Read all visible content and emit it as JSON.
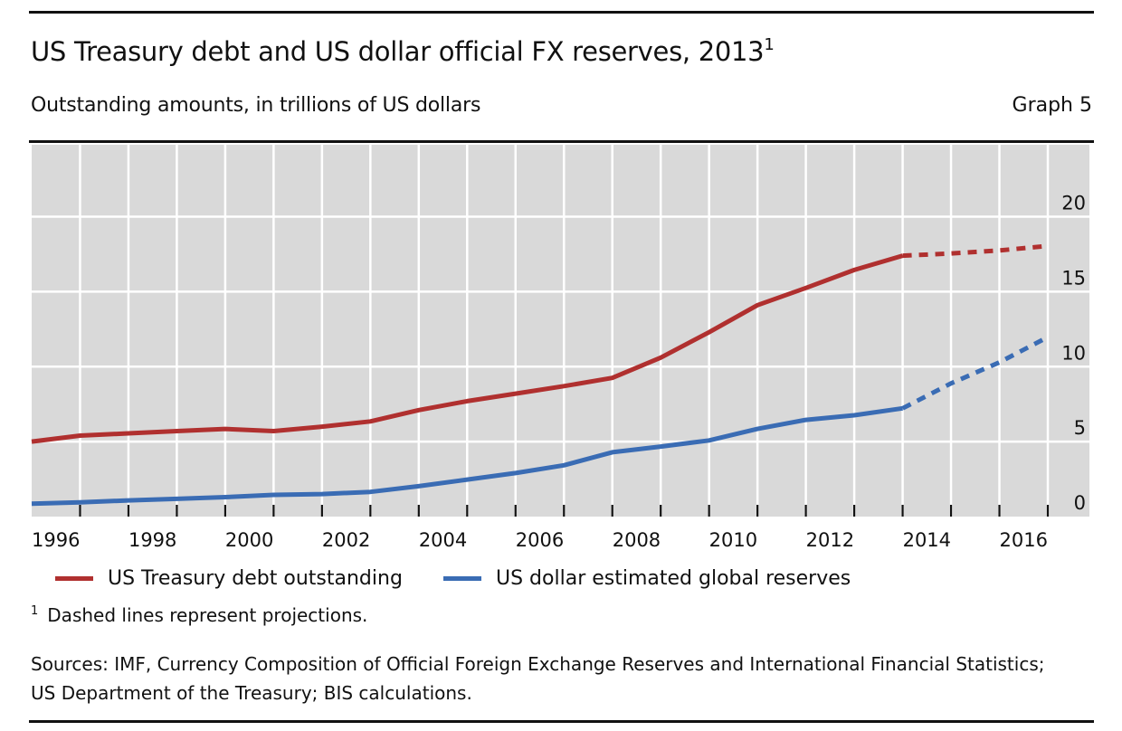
{
  "header": {
    "title": "US Treasury debt and US dollar official FX reserves, 2013",
    "title_footnote_marker": "1",
    "subtitle": "Outstanding amounts, in trillions  of US dollars",
    "graph_number": "Graph 5"
  },
  "footer": {
    "footnote_marker": "1",
    "footnote_text": "Dashed lines represent projections.",
    "sources_line1": "Sources: IMF, Currency Composition of Official Foreign Exchange Reserves and International Financial Statistics;",
    "sources_line2": "US Department of the Treasury; BIS calculations."
  },
  "chart_data": {
    "type": "line",
    "title": "US Treasury debt and US dollar official FX reserves, 2013",
    "subtitle": "Outstanding amounts, in trillions  of US dollars",
    "xlabel": "",
    "ylabel": "",
    "x_unit": "year (points at year boundaries; labels centred on each year)",
    "xlim": [
      1996,
      2017
    ],
    "ylim": [
      0,
      24.8
    ],
    "y_axis_position": "right",
    "y_ticks": [
      0,
      5,
      10,
      15,
      20
    ],
    "y_tick_labels": [
      "0",
      "5",
      "10",
      "15",
      "20"
    ],
    "x_tick_labels": [
      "1996",
      "1998",
      "2000",
      "2002",
      "2004",
      "2006",
      "2008",
      "2010",
      "2012",
      "2014",
      "2016"
    ],
    "x_tick_label_years": [
      1996,
      1998,
      2000,
      2002,
      2004,
      2006,
      2008,
      2010,
      2012,
      2014,
      2016
    ],
    "grid": true,
    "background": "#d9d9d9",
    "projection_start": 2014,
    "legend_position": "bottom",
    "x": [
      1996,
      1997,
      1998,
      1999,
      2000,
      2001,
      2002,
      2003,
      2004,
      2005,
      2006,
      2007,
      2008,
      2009,
      2010,
      2011,
      2012,
      2013,
      2014,
      2015,
      2016,
      2017
    ],
    "series": [
      {
        "name": "US Treasury debt outstanding",
        "color": "#b0302f",
        "values": [
          5.0,
          5.4,
          5.55,
          5.7,
          5.85,
          5.7,
          6.0,
          6.35,
          7.1,
          7.7,
          8.2,
          8.7,
          9.25,
          10.6,
          12.3,
          14.1,
          15.25,
          16.45,
          17.4,
          17.55,
          17.75,
          18.05
        ]
      },
      {
        "name": "US dollar estimated global reserves",
        "color": "#3a6cb4",
        "values": [
          0.86,
          0.95,
          1.08,
          1.18,
          1.3,
          1.45,
          1.5,
          1.65,
          2.03,
          2.47,
          2.9,
          3.42,
          4.29,
          4.67,
          5.08,
          5.85,
          6.45,
          6.76,
          7.22,
          8.88,
          10.29,
          11.97
        ]
      }
    ],
    "annotations": [
      "Dashed lines represent projections."
    ]
  }
}
